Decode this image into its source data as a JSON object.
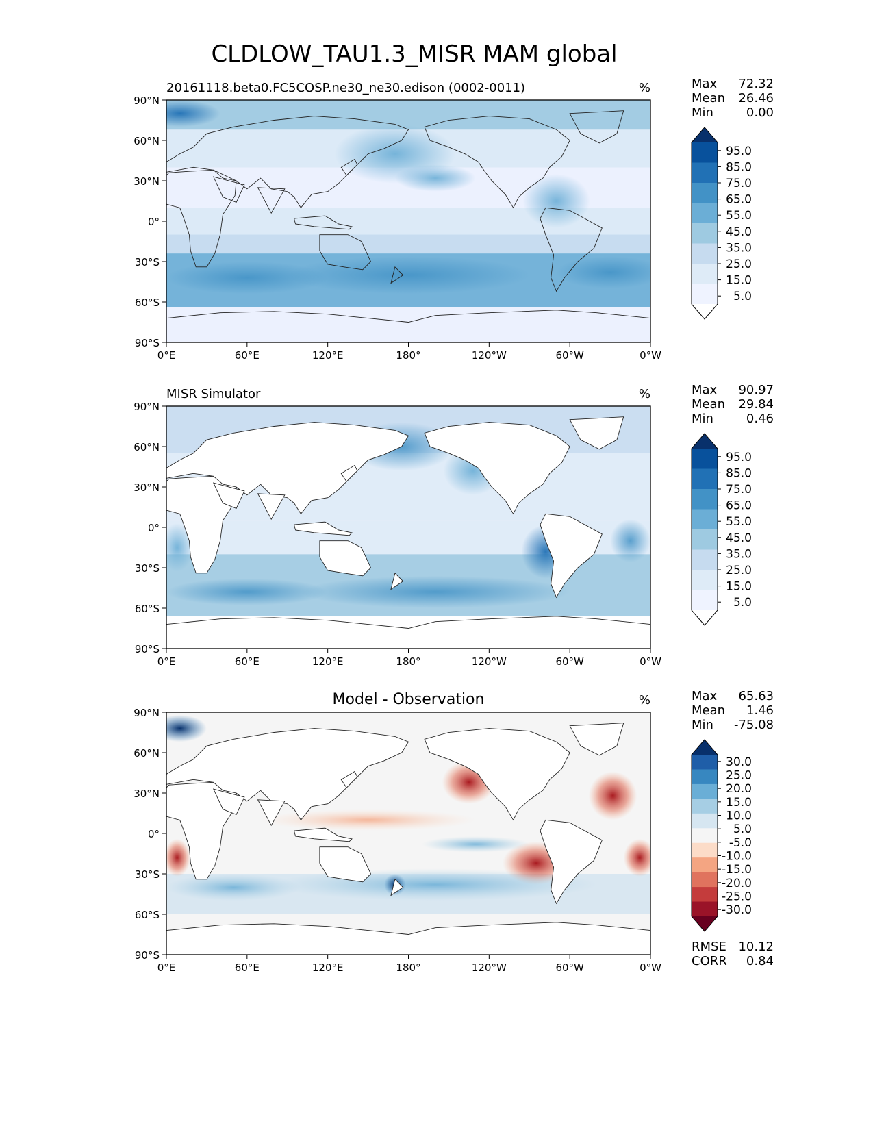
{
  "title": "CLDLOW_TAU1.3_MISR MAM global",
  "axis": {
    "lat_ticks": [
      "90°N",
      "60°N",
      "30°N",
      "0°",
      "30°S",
      "60°S",
      "90°S"
    ],
    "lon_ticks": [
      "0°E",
      "60°E",
      "120°E",
      "180°",
      "120°W",
      "60°W",
      "0°W"
    ]
  },
  "panels": [
    {
      "id": "test",
      "left_title": "20161118.beta0.FC5COSP.ne30_ne30.edison (0002-0011)",
      "center_title": "",
      "units": "%",
      "stats": [
        {
          "label": "Max",
          "value": "72.32"
        },
        {
          "label": "Mean",
          "value": "26.46"
        },
        {
          "label": "Min",
          "value": "0.00"
        }
      ],
      "colorbar": {
        "labels": [
          "95.0",
          "85.0",
          "75.0",
          "65.0",
          "55.0",
          "45.0",
          "35.0",
          "25.0",
          "15.0",
          "5.0"
        ],
        "colors": [
          "#08306b",
          "#08519c",
          "#2171b5",
          "#4292c6",
          "#6baed6",
          "#9ecae1",
          "#c6dbef",
          "#deebf7",
          "#eff3ff",
          "#ffffff"
        ]
      },
      "footer": []
    },
    {
      "id": "reference",
      "left_title": "MISR Simulator",
      "center_title": "",
      "units": "%",
      "stats": [
        {
          "label": "Max",
          "value": "90.97"
        },
        {
          "label": "Mean",
          "value": "29.84"
        },
        {
          "label": "Min",
          "value": "0.46"
        }
      ],
      "colorbar": {
        "labels": [
          "95.0",
          "85.0",
          "75.0",
          "65.0",
          "55.0",
          "45.0",
          "35.0",
          "25.0",
          "15.0",
          "5.0"
        ],
        "colors": [
          "#08306b",
          "#08519c",
          "#2171b5",
          "#4292c6",
          "#6baed6",
          "#9ecae1",
          "#c6dbef",
          "#deebf7",
          "#eff3ff",
          "#ffffff"
        ]
      },
      "footer": []
    },
    {
      "id": "diff",
      "left_title": "",
      "center_title": "Model - Observation",
      "units": "%",
      "stats": [
        {
          "label": "Max",
          "value": "65.63"
        },
        {
          "label": "Mean",
          "value": "1.46"
        },
        {
          "label": "Min",
          "value": "-75.08"
        }
      ],
      "colorbar": {
        "labels": [
          "30.0",
          "25.0",
          "20.0",
          "15.0",
          "10.0",
          "5.0",
          "-5.0",
          "-10.0",
          "-15.0",
          "-20.0",
          "-25.0",
          "-30.0"
        ],
        "colors": [
          "#08306b",
          "#1f5ea8",
          "#3787c0",
          "#6aaed6",
          "#a6cee4",
          "#d6e6f1",
          "#f5f5f5",
          "#fcdcc8",
          "#f4a582",
          "#e0735e",
          "#c43c3c",
          "#9a1328",
          "#67001f"
        ]
      },
      "footer": [
        {
          "label": "RMSE",
          "value": "10.12"
        },
        {
          "label": "CORR",
          "value": "0.84"
        }
      ]
    }
  ]
}
